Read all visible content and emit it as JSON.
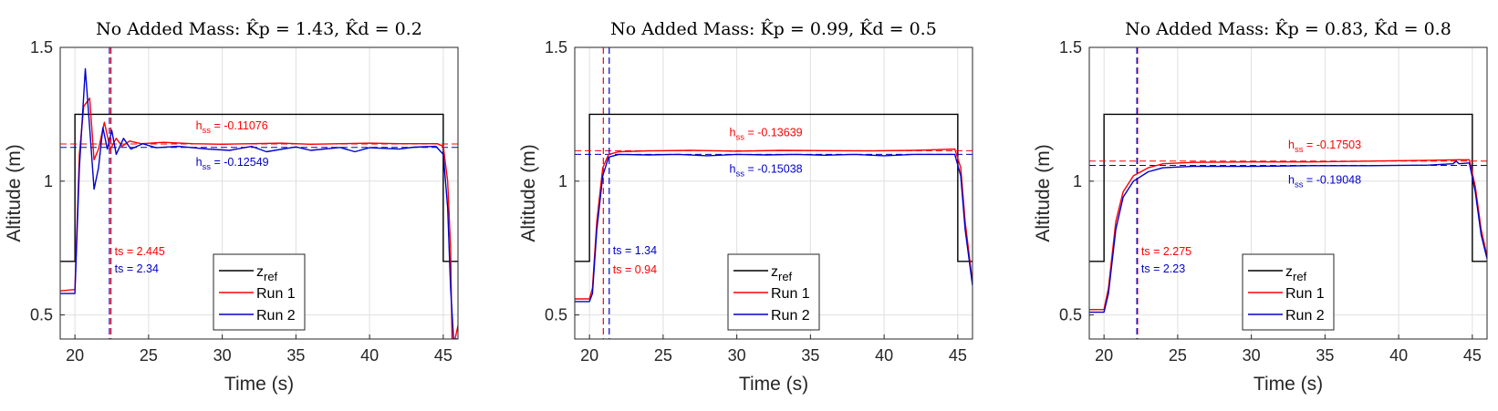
{
  "chart_data": [
    {
      "type": "line",
      "title": "No Added Mass: K̂p = 1.43, K̂d = 0.2",
      "xlabel": "Time (s)",
      "ylabel": "Altitude (m)",
      "xlim": [
        19,
        46
      ],
      "ylim": [
        0.41,
        1.5
      ],
      "xticks": [
        "20",
        "25",
        "30",
        "35",
        "40",
        "45"
      ],
      "yticks": [
        "0.5",
        "1",
        "1.5"
      ],
      "grid": true,
      "legend": {
        "position": "bottom-center",
        "entries": [
          "z_ref",
          "Run 1",
          "Run 2"
        ]
      },
      "reference": {
        "name": "z_ref",
        "low": 0.7,
        "high": 1.25,
        "step_up": 20,
        "step_down": 45
      },
      "series": [
        {
          "name": "Run 1",
          "color": "#ff0000",
          "steady_state": 1.139,
          "h_ss": "-0.11076",
          "ts": "2.445",
          "ts_line_x": 22.445,
          "points": [
            [
              19,
              0.59
            ],
            [
              20,
              0.595
            ],
            [
              20.3,
              1.1
            ],
            [
              20.6,
              1.28
            ],
            [
              21.0,
              1.31
            ],
            [
              21.3,
              1.08
            ],
            [
              21.6,
              1.12
            ],
            [
              22.0,
              1.22
            ],
            [
              22.4,
              1.12
            ],
            [
              22.8,
              1.16
            ],
            [
              23.2,
              1.13
            ],
            [
              23.7,
              1.15
            ],
            [
              24.5,
              1.14
            ],
            [
              26,
              1.145
            ],
            [
              28,
              1.14
            ],
            [
              30,
              1.138
            ],
            [
              32,
              1.14
            ],
            [
              34,
              1.142
            ],
            [
              36,
              1.138
            ],
            [
              38,
              1.14
            ],
            [
              40,
              1.142
            ],
            [
              42,
              1.14
            ],
            [
              44,
              1.14
            ],
            [
              44.6,
              1.14
            ],
            [
              45,
              1.13
            ],
            [
              45.3,
              1.0
            ],
            [
              45.5,
              0.75
            ],
            [
              45.6,
              0.41
            ],
            [
              45.8,
              0.41
            ],
            [
              46,
              0.46
            ]
          ]
        },
        {
          "name": "Run 2",
          "color": "#0000cc",
          "steady_state": 1.126,
          "h_ss": "-0.12549",
          "ts": "2.34",
          "ts_line_x": 22.34,
          "points": [
            [
              19,
              0.58
            ],
            [
              20,
              0.58
            ],
            [
              20.3,
              1.05
            ],
            [
              20.7,
              1.42
            ],
            [
              21.0,
              1.2
            ],
            [
              21.3,
              0.97
            ],
            [
              21.6,
              1.05
            ],
            [
              21.9,
              1.2
            ],
            [
              22.2,
              1.12
            ],
            [
              22.5,
              1.19
            ],
            [
              22.8,
              1.1
            ],
            [
              23.3,
              1.16
            ],
            [
              23.8,
              1.12
            ],
            [
              24.6,
              1.14
            ],
            [
              25.5,
              1.125
            ],
            [
              27,
              1.13
            ],
            [
              29,
              1.12
            ],
            [
              30.5,
              1.115
            ],
            [
              32,
              1.13
            ],
            [
              33,
              1.11
            ],
            [
              35,
              1.128
            ],
            [
              36,
              1.115
            ],
            [
              38,
              1.126
            ],
            [
              39,
              1.11
            ],
            [
              40,
              1.125
            ],
            [
              42,
              1.12
            ],
            [
              43,
              1.127
            ],
            [
              44.5,
              1.13
            ],
            [
              45,
              1.1
            ],
            [
              45.3,
              0.9
            ],
            [
              45.5,
              0.6
            ],
            [
              45.7,
              0.41
            ],
            [
              46,
              0.41
            ]
          ]
        }
      ]
    },
    {
      "type": "line",
      "title": "No Added Mass: K̂p = 0.99, K̂d = 0.5",
      "xlabel": "Time (s)",
      "ylabel": "Altitude (m)",
      "xlim": [
        19,
        46
      ],
      "ylim": [
        0.41,
        1.5
      ],
      "xticks": [
        "20",
        "25",
        "30",
        "35",
        "40",
        "45"
      ],
      "yticks": [
        "0.5",
        "1",
        "1.5"
      ],
      "grid": true,
      "legend": {
        "position": "bottom-center",
        "entries": [
          "z_ref",
          "Run 1",
          "Run 2"
        ]
      },
      "reference": {
        "name": "z_ref",
        "low": 0.7,
        "high": 1.25,
        "step_up": 20,
        "step_down": 45
      },
      "series": [
        {
          "name": "Run 1",
          "color": "#ff0000",
          "steady_state": 1.114,
          "h_ss": "-0.13639",
          "ts": "0.94",
          "ts_line_x": 20.94,
          "points": [
            [
              19,
              0.56
            ],
            [
              20,
              0.56
            ],
            [
              20.2,
              0.6
            ],
            [
              20.5,
              0.85
            ],
            [
              20.9,
              1.05
            ],
            [
              21.3,
              1.1
            ],
            [
              22,
              1.11
            ],
            [
              24,
              1.113
            ],
            [
              27,
              1.115
            ],
            [
              30,
              1.112
            ],
            [
              33,
              1.115
            ],
            [
              36,
              1.114
            ],
            [
              39,
              1.113
            ],
            [
              42,
              1.115
            ],
            [
              44.8,
              1.12
            ],
            [
              45.2,
              1.05
            ],
            [
              45.5,
              0.85
            ],
            [
              46,
              0.62
            ]
          ]
        },
        {
          "name": "Run 2",
          "color": "#0000cc",
          "steady_state": 1.1,
          "h_ss": "-0.15038",
          "ts": "1.34",
          "ts_line_x": 21.34,
          "points": [
            [
              19,
              0.55
            ],
            [
              20,
              0.55
            ],
            [
              20.2,
              0.58
            ],
            [
              20.5,
              0.82
            ],
            [
              20.9,
              1.02
            ],
            [
              21.3,
              1.09
            ],
            [
              22,
              1.1
            ],
            [
              24,
              1.098
            ],
            [
              26,
              1.1
            ],
            [
              28,
              1.095
            ],
            [
              30,
              1.1
            ],
            [
              32,
              1.098
            ],
            [
              34,
              1.1
            ],
            [
              36,
              1.097
            ],
            [
              38,
              1.1
            ],
            [
              40,
              1.095
            ],
            [
              42,
              1.1
            ],
            [
              44.8,
              1.1
            ],
            [
              45.2,
              1.02
            ],
            [
              45.5,
              0.82
            ],
            [
              46,
              0.61
            ]
          ]
        }
      ]
    },
    {
      "type": "line",
      "title": "No Added Mass: K̂p = 0.83, K̂d = 0.8",
      "xlabel": "Time (s)",
      "ylabel": "Altitude (m)",
      "xlim": [
        19,
        46
      ],
      "ylim": [
        0.41,
        1.5
      ],
      "xticks": [
        "20",
        "25",
        "30",
        "35",
        "40",
        "45"
      ],
      "yticks": [
        "0.5",
        "1",
        "1.5"
      ],
      "grid": true,
      "legend": {
        "position": "bottom-center",
        "entries": [
          "z_ref",
          "Run 1",
          "Run 2"
        ]
      },
      "reference": {
        "name": "z_ref",
        "low": 0.7,
        "high": 1.25,
        "step_up": 20,
        "step_down": 45
      },
      "series": [
        {
          "name": "Run 1",
          "color": "#ff0000",
          "steady_state": 1.075,
          "h_ss": "-0.17503",
          "ts": "2.275",
          "ts_line_x": 22.275,
          "points": [
            [
              19,
              0.52
            ],
            [
              20,
              0.52
            ],
            [
              20.3,
              0.6
            ],
            [
              20.8,
              0.85
            ],
            [
              21.3,
              0.96
            ],
            [
              22,
              1.02
            ],
            [
              23,
              1.05
            ],
            [
              24,
              1.065
            ],
            [
              26,
              1.07
            ],
            [
              30,
              1.072
            ],
            [
              34,
              1.072
            ],
            [
              38,
              1.075
            ],
            [
              42,
              1.078
            ],
            [
              44,
              1.08
            ],
            [
              44.8,
              1.08
            ],
            [
              45.2,
              0.98
            ],
            [
              45.6,
              0.82
            ],
            [
              46,
              0.72
            ]
          ]
        },
        {
          "name": "Run 2",
          "color": "#0000cc",
          "steady_state": 1.059,
          "h_ss": "-0.19048",
          "ts": "2.23",
          "ts_line_x": 22.23,
          "points": [
            [
              19,
              0.51
            ],
            [
              20,
              0.51
            ],
            [
              20.3,
              0.58
            ],
            [
              20.8,
              0.82
            ],
            [
              21.3,
              0.94
            ],
            [
              22,
              1.0
            ],
            [
              23,
              1.035
            ],
            [
              24,
              1.05
            ],
            [
              26,
              1.055
            ],
            [
              30,
              1.055
            ],
            [
              34,
              1.058
            ],
            [
              38,
              1.058
            ],
            [
              42,
              1.06
            ],
            [
              43.7,
              1.065
            ],
            [
              43.9,
              1.075
            ],
            [
              44.1,
              1.065
            ],
            [
              44.8,
              1.068
            ],
            [
              45.2,
              0.96
            ],
            [
              45.6,
              0.8
            ],
            [
              46,
              0.71
            ]
          ]
        }
      ]
    }
  ]
}
